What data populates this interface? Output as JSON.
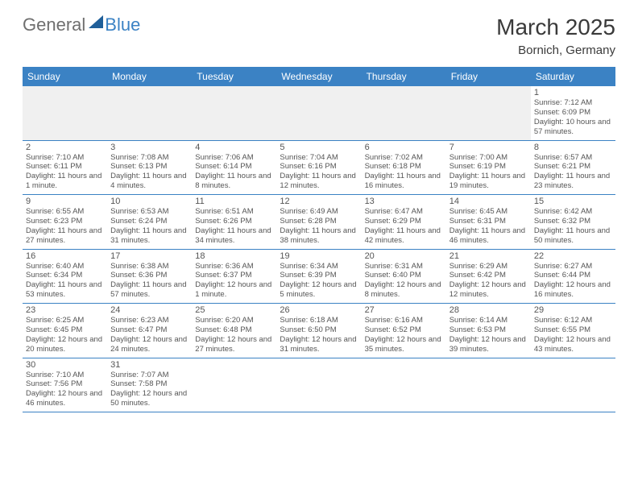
{
  "logo": {
    "part1": "General",
    "part2": "Blue"
  },
  "title": "March 2025",
  "location": "Bornich, Germany",
  "colors": {
    "header_bg": "#3b82c4",
    "header_text": "#ffffff",
    "rule": "#3b82c4",
    "text": "#555555",
    "blank_bg": "#f0f0f0",
    "logo_gray": "#6f6f6f",
    "logo_blue": "#3b82c4"
  },
  "typography": {
    "title_fontsize": 28,
    "location_fontsize": 15,
    "dayheader_fontsize": 12,
    "daynum_fontsize": 11,
    "info_fontsize": 9.5
  },
  "day_names": [
    "Sunday",
    "Monday",
    "Tuesday",
    "Wednesday",
    "Thursday",
    "Friday",
    "Saturday"
  ],
  "weeks": [
    [
      null,
      null,
      null,
      null,
      null,
      null,
      {
        "n": "1",
        "sunrise": "7:12 AM",
        "sunset": "6:09 PM",
        "daylight": "10 hours and 57 minutes."
      }
    ],
    [
      {
        "n": "2",
        "sunrise": "7:10 AM",
        "sunset": "6:11 PM",
        "daylight": "11 hours and 1 minute."
      },
      {
        "n": "3",
        "sunrise": "7:08 AM",
        "sunset": "6:13 PM",
        "daylight": "11 hours and 4 minutes."
      },
      {
        "n": "4",
        "sunrise": "7:06 AM",
        "sunset": "6:14 PM",
        "daylight": "11 hours and 8 minutes."
      },
      {
        "n": "5",
        "sunrise": "7:04 AM",
        "sunset": "6:16 PM",
        "daylight": "11 hours and 12 minutes."
      },
      {
        "n": "6",
        "sunrise": "7:02 AM",
        "sunset": "6:18 PM",
        "daylight": "11 hours and 16 minutes."
      },
      {
        "n": "7",
        "sunrise": "7:00 AM",
        "sunset": "6:19 PM",
        "daylight": "11 hours and 19 minutes."
      },
      {
        "n": "8",
        "sunrise": "6:57 AM",
        "sunset": "6:21 PM",
        "daylight": "11 hours and 23 minutes."
      }
    ],
    [
      {
        "n": "9",
        "sunrise": "6:55 AM",
        "sunset": "6:23 PM",
        "daylight": "11 hours and 27 minutes."
      },
      {
        "n": "10",
        "sunrise": "6:53 AM",
        "sunset": "6:24 PM",
        "daylight": "11 hours and 31 minutes."
      },
      {
        "n": "11",
        "sunrise": "6:51 AM",
        "sunset": "6:26 PM",
        "daylight": "11 hours and 34 minutes."
      },
      {
        "n": "12",
        "sunrise": "6:49 AM",
        "sunset": "6:28 PM",
        "daylight": "11 hours and 38 minutes."
      },
      {
        "n": "13",
        "sunrise": "6:47 AM",
        "sunset": "6:29 PM",
        "daylight": "11 hours and 42 minutes."
      },
      {
        "n": "14",
        "sunrise": "6:45 AM",
        "sunset": "6:31 PM",
        "daylight": "11 hours and 46 minutes."
      },
      {
        "n": "15",
        "sunrise": "6:42 AM",
        "sunset": "6:32 PM",
        "daylight": "11 hours and 50 minutes."
      }
    ],
    [
      {
        "n": "16",
        "sunrise": "6:40 AM",
        "sunset": "6:34 PM",
        "daylight": "11 hours and 53 minutes."
      },
      {
        "n": "17",
        "sunrise": "6:38 AM",
        "sunset": "6:36 PM",
        "daylight": "11 hours and 57 minutes."
      },
      {
        "n": "18",
        "sunrise": "6:36 AM",
        "sunset": "6:37 PM",
        "daylight": "12 hours and 1 minute."
      },
      {
        "n": "19",
        "sunrise": "6:34 AM",
        "sunset": "6:39 PM",
        "daylight": "12 hours and 5 minutes."
      },
      {
        "n": "20",
        "sunrise": "6:31 AM",
        "sunset": "6:40 PM",
        "daylight": "12 hours and 8 minutes."
      },
      {
        "n": "21",
        "sunrise": "6:29 AM",
        "sunset": "6:42 PM",
        "daylight": "12 hours and 12 minutes."
      },
      {
        "n": "22",
        "sunrise": "6:27 AM",
        "sunset": "6:44 PM",
        "daylight": "12 hours and 16 minutes."
      }
    ],
    [
      {
        "n": "23",
        "sunrise": "6:25 AM",
        "sunset": "6:45 PM",
        "daylight": "12 hours and 20 minutes."
      },
      {
        "n": "24",
        "sunrise": "6:23 AM",
        "sunset": "6:47 PM",
        "daylight": "12 hours and 24 minutes."
      },
      {
        "n": "25",
        "sunrise": "6:20 AM",
        "sunset": "6:48 PM",
        "daylight": "12 hours and 27 minutes."
      },
      {
        "n": "26",
        "sunrise": "6:18 AM",
        "sunset": "6:50 PM",
        "daylight": "12 hours and 31 minutes."
      },
      {
        "n": "27",
        "sunrise": "6:16 AM",
        "sunset": "6:52 PM",
        "daylight": "12 hours and 35 minutes."
      },
      {
        "n": "28",
        "sunrise": "6:14 AM",
        "sunset": "6:53 PM",
        "daylight": "12 hours and 39 minutes."
      },
      {
        "n": "29",
        "sunrise": "6:12 AM",
        "sunset": "6:55 PM",
        "daylight": "12 hours and 43 minutes."
      }
    ],
    [
      {
        "n": "30",
        "sunrise": "7:10 AM",
        "sunset": "7:56 PM",
        "daylight": "12 hours and 46 minutes."
      },
      {
        "n": "31",
        "sunrise": "7:07 AM",
        "sunset": "7:58 PM",
        "daylight": "12 hours and 50 minutes."
      },
      null,
      null,
      null,
      null,
      null
    ]
  ]
}
